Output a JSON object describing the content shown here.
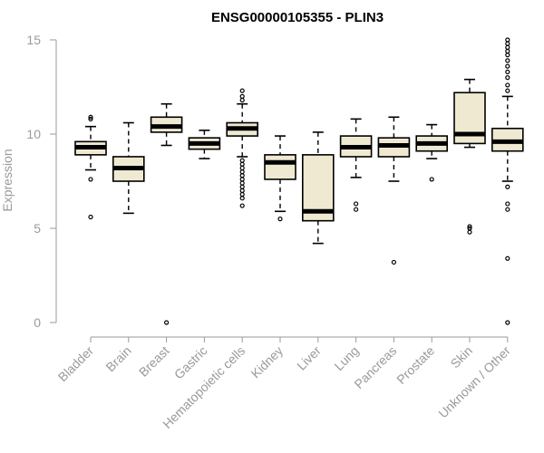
{
  "chart_data": {
    "type": "boxplot",
    "title": "ENSG00000105355 - PLIN3",
    "xlabel": "",
    "ylabel": "Expression",
    "ylim": [
      0,
      15
    ],
    "yticks": [
      0,
      5,
      10,
      15
    ],
    "grid": false,
    "box_fill": "#efe9d2",
    "categories": [
      "Bladder",
      "Brain",
      "Breast",
      "Gastric",
      "Hematopoietic cells",
      "Kidney",
      "Liver",
      "Lung",
      "Pancreas",
      "Prostate",
      "Skin",
      "Unknown / Other"
    ],
    "boxes": [
      {
        "category": "Bladder",
        "whisker_low": 8.1,
        "q1": 8.9,
        "median": 9.3,
        "q3": 9.6,
        "whisker_high": 10.4,
        "outliers": [
          5.6,
          7.6,
          10.8,
          10.9
        ]
      },
      {
        "category": "Brain",
        "whisker_low": 5.8,
        "q1": 7.5,
        "median": 8.2,
        "q3": 8.8,
        "whisker_high": 10.6,
        "outliers": []
      },
      {
        "category": "Breast",
        "whisker_low": 9.4,
        "q1": 10.1,
        "median": 10.4,
        "q3": 10.9,
        "whisker_high": 11.6,
        "outliers": [
          0.0
        ]
      },
      {
        "category": "Gastric",
        "whisker_low": 8.7,
        "q1": 9.2,
        "median": 9.5,
        "q3": 9.8,
        "whisker_high": 10.2,
        "outliers": []
      },
      {
        "category": "Hematopoietic cells",
        "whisker_low": 8.8,
        "q1": 9.9,
        "median": 10.3,
        "q3": 10.6,
        "whisker_high": 11.6,
        "outliers": [
          6.2,
          6.6,
          6.8,
          7.0,
          7.2,
          7.4,
          7.6,
          7.8,
          8.0,
          8.2,
          8.4,
          8.6,
          11.8,
          12.0,
          12.3
        ]
      },
      {
        "category": "Kidney",
        "whisker_low": 5.9,
        "q1": 7.6,
        "median": 8.5,
        "q3": 8.9,
        "whisker_high": 9.9,
        "outliers": [
          5.5
        ]
      },
      {
        "category": "Liver",
        "whisker_low": 4.2,
        "q1": 5.4,
        "median": 5.9,
        "q3": 8.9,
        "whisker_high": 10.1,
        "outliers": []
      },
      {
        "category": "Lung",
        "whisker_low": 7.7,
        "q1": 8.8,
        "median": 9.3,
        "q3": 9.9,
        "whisker_high": 10.8,
        "outliers": [
          6.0,
          6.3
        ]
      },
      {
        "category": "Pancreas",
        "whisker_low": 7.5,
        "q1": 8.8,
        "median": 9.4,
        "q3": 9.8,
        "whisker_high": 10.9,
        "outliers": [
          3.2
        ]
      },
      {
        "category": "Prostate",
        "whisker_low": 8.7,
        "q1": 9.1,
        "median": 9.5,
        "q3": 9.9,
        "whisker_high": 10.5,
        "outliers": [
          7.6
        ]
      },
      {
        "category": "Skin",
        "whisker_low": 9.3,
        "q1": 9.5,
        "median": 10.0,
        "q3": 12.2,
        "whisker_high": 12.9,
        "outliers": [
          4.8,
          5.0,
          5.1
        ]
      },
      {
        "category": "Unknown / Other",
        "whisker_low": 7.5,
        "q1": 9.1,
        "median": 9.6,
        "q3": 10.3,
        "whisker_high": 12.0,
        "outliers": [
          0.0,
          3.4,
          6.0,
          6.3,
          7.2,
          12.3,
          12.6,
          13.0,
          13.3,
          13.6,
          13.9,
          14.2,
          14.4,
          14.6,
          14.8,
          15.0
        ]
      }
    ]
  }
}
